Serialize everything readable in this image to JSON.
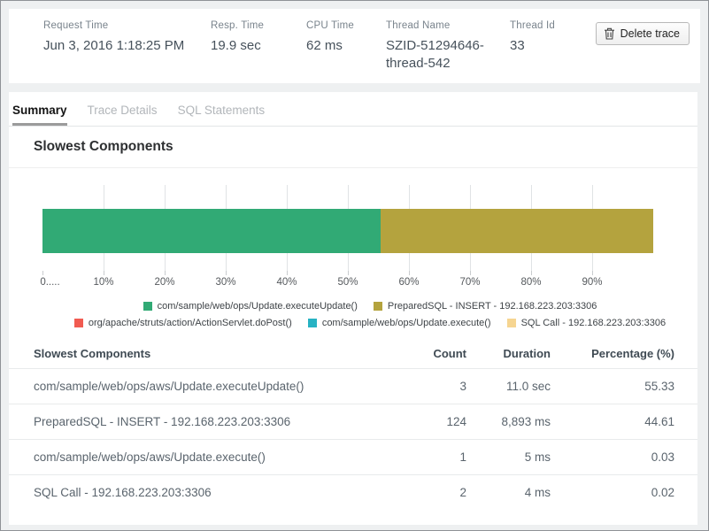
{
  "header": {
    "fields": [
      {
        "label": "Request Time",
        "value": "Jun 3, 2016 1:18:25 PM"
      },
      {
        "label": "Resp. Time",
        "value": "19.9 sec"
      },
      {
        "label": "CPU Time",
        "value": "62 ms"
      },
      {
        "label": "Thread Name",
        "value": "SZID-51294646-thread-542"
      },
      {
        "label": "Thread Id",
        "value": "33"
      }
    ],
    "delete_button_label": "Delete trace"
  },
  "tabs": [
    {
      "label": "Summary",
      "active": true
    },
    {
      "label": "Trace Details",
      "active": false
    },
    {
      "label": "SQL Statements",
      "active": false
    }
  ],
  "section_title": "Slowest Components",
  "chart_data": {
    "type": "bar",
    "stacked": true,
    "orientation": "horizontal",
    "x_ticks": [
      "0.....",
      "10%",
      "20%",
      "30%",
      "40%",
      "50%",
      "60%",
      "70%",
      "80%",
      "90%"
    ],
    "xlim": [
      0,
      100
    ],
    "grid": true,
    "segments": [
      {
        "name": "com/sample/web/ops/Update.executeUpdate()",
        "value": 55.33,
        "color": "#31aa75"
      },
      {
        "name": "PreparedSQL - INSERT - 192.168.223.203:3306",
        "value": 44.61,
        "color": "#b4a33e"
      }
    ],
    "legend": [
      {
        "label": "com/sample/web/ops/Update.executeUpdate()",
        "color": "#31aa75"
      },
      {
        "label": "PreparedSQL - INSERT - 192.168.223.203:3306",
        "color": "#b4a33e"
      },
      {
        "label": "org/apache/struts/action/ActionServlet.doPost()",
        "color": "#f15b51"
      },
      {
        "label": "com/sample/web/ops/Update.execute()",
        "color": "#27b2c3"
      },
      {
        "label": "SQL Call - 192.168.223.203:3306",
        "color": "#f6d591"
      }
    ],
    "legend_rows": [
      [
        0,
        1
      ],
      [
        2,
        3,
        4
      ]
    ],
    "legend_position": "bottom"
  },
  "table": {
    "columns": [
      "Slowest Components",
      "Count",
      "Duration",
      "Percentage (%)"
    ],
    "rows": [
      {
        "component": "com/sample/web/ops/aws/Update.executeUpdate()",
        "count": "3",
        "duration": "11.0 sec",
        "percentage": "55.33"
      },
      {
        "component": "PreparedSQL - INSERT - 192.168.223.203:3306",
        "count": "124",
        "duration": "8,893 ms",
        "percentage": "44.61"
      },
      {
        "component": "com/sample/web/ops/aws/Update.execute()",
        "count": "1",
        "duration": "5 ms",
        "percentage": "0.03"
      },
      {
        "component": "SQL Call - 192.168.223.203:3306",
        "count": "2",
        "duration": "4 ms",
        "percentage": "0.02"
      }
    ]
  }
}
